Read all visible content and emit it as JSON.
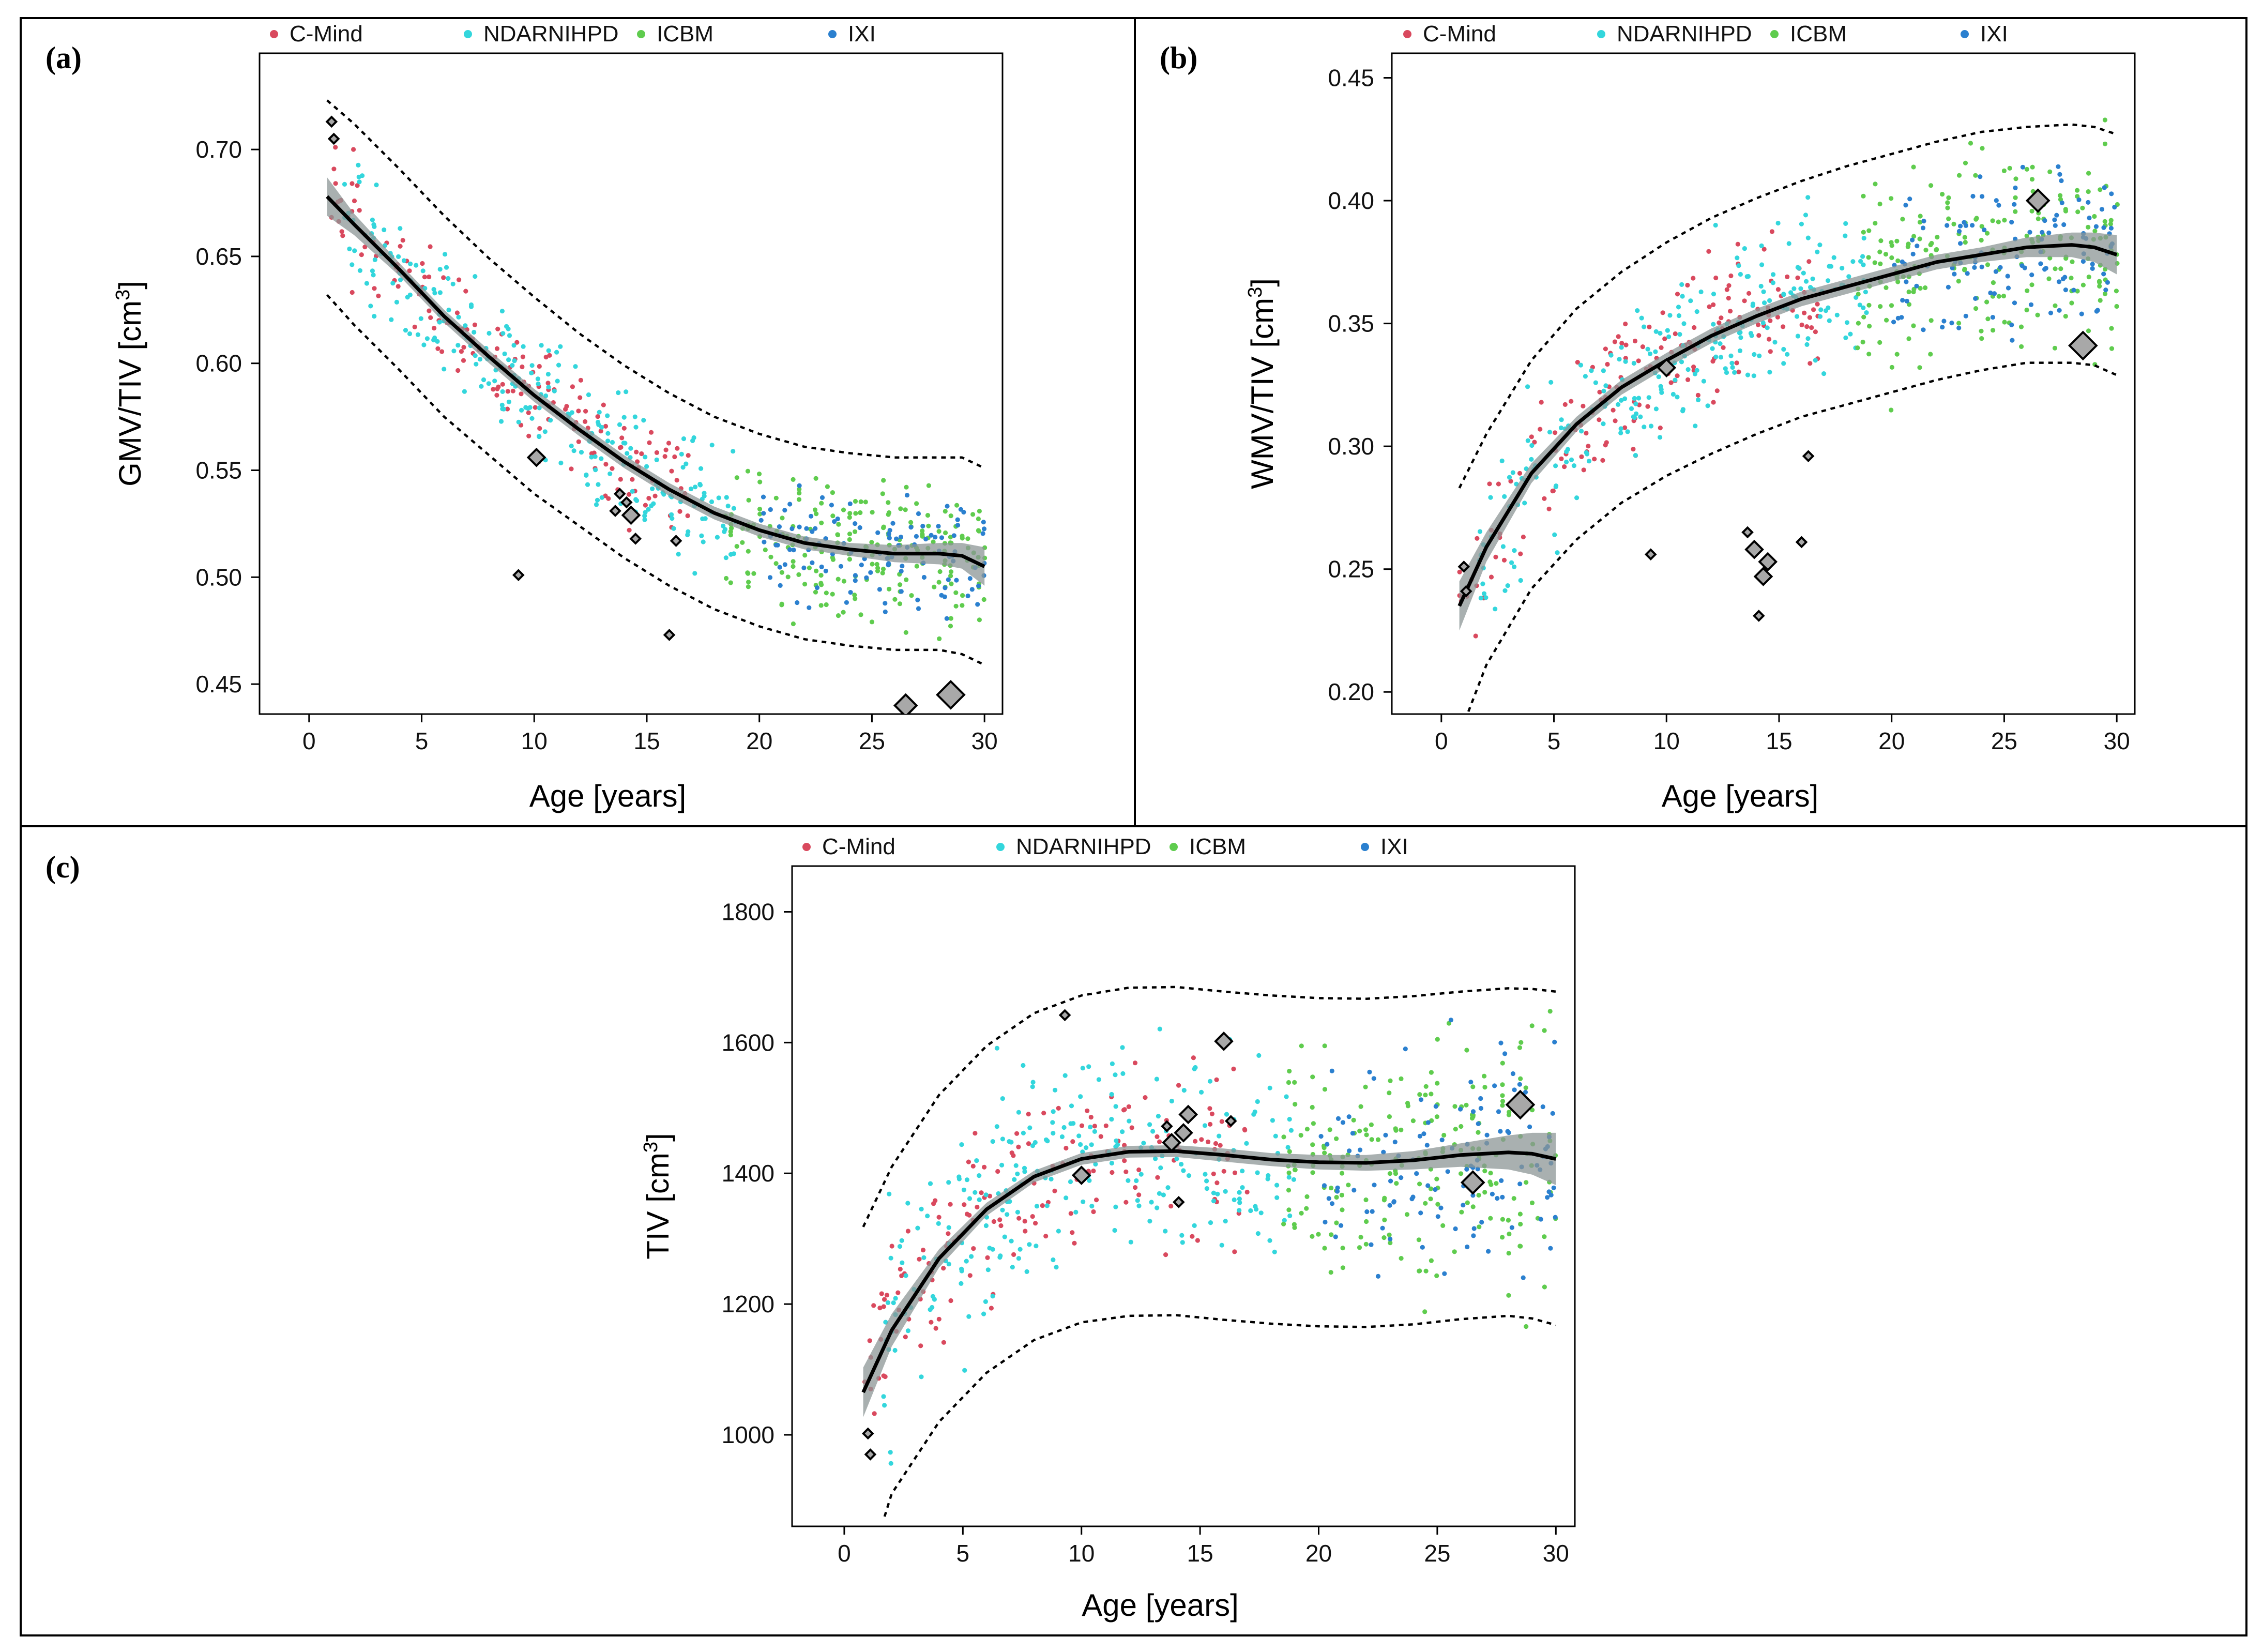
{
  "colors": {
    "C-Mind": "#d9495e",
    "NDARNIHPD": "#33d6dc",
    "ICBM": "#5fcc4e",
    "IXI": "#2b80cf"
  },
  "chart_data": [
    {
      "panel": "(a)",
      "type": "scatter",
      "xlabel": "Age [years]",
      "ylabel_main": "GMV/TIV [cm",
      "ylabel_sup": "3",
      "ylabel_close": "]",
      "xlim": [
        -2.2,
        30.8
      ],
      "ylim": [
        0.436,
        0.745
      ],
      "xticks": [
        0,
        5,
        10,
        15,
        20,
        25,
        30
      ],
      "yticks": [
        0.45,
        0.5,
        0.55,
        0.6,
        0.65,
        0.7
      ],
      "ytick_labels": [
        "0.45",
        "0.50",
        "0.55",
        "0.60",
        "0.65",
        "0.70"
      ],
      "legend": [
        "C-Mind",
        "NDARNIHPD",
        "ICBM",
        "IXI"
      ],
      "fit": {
        "x": [
          0.8,
          2,
          4,
          6,
          8,
          10,
          12,
          14,
          16,
          18,
          20,
          22,
          24,
          26,
          28,
          29,
          30
        ],
        "y": [
          0.678,
          0.665,
          0.644,
          0.622,
          0.603,
          0.585,
          0.569,
          0.554,
          0.541,
          0.53,
          0.522,
          0.516,
          0.513,
          0.511,
          0.511,
          0.51,
          0.505
        ],
        "ci": [
          0.009,
          0.005,
          0.003,
          0.003,
          0.003,
          0.003,
          0.003,
          0.003,
          0.003,
          0.003,
          0.003,
          0.003,
          0.003,
          0.004,
          0.005,
          0.006,
          0.009
        ]
      },
      "pi_upper": {
        "x": [
          0.8,
          2,
          4,
          6,
          8,
          10,
          12,
          14,
          16,
          18,
          20,
          22,
          24,
          26,
          28,
          29,
          30
        ],
        "y": [
          0.723,
          0.712,
          0.691,
          0.669,
          0.649,
          0.631,
          0.614,
          0.599,
          0.586,
          0.575,
          0.567,
          0.561,
          0.558,
          0.556,
          0.556,
          0.556,
          0.551
        ]
      },
      "pi_lower": {
        "x": [
          0.8,
          2,
          4,
          6,
          8,
          10,
          12,
          14,
          16,
          18,
          20,
          22,
          24,
          26,
          28,
          29,
          30
        ],
        "y": [
          0.632,
          0.618,
          0.597,
          0.575,
          0.557,
          0.539,
          0.524,
          0.509,
          0.496,
          0.485,
          0.477,
          0.471,
          0.468,
          0.466,
          0.466,
          0.464,
          0.459
        ]
      },
      "cohorts": {
        "C-Mind": {
          "xmin": 0.8,
          "xmax": 17.0,
          "spread": 0.018,
          "n": 170,
          "seed": 11
        },
        "NDARNIHPD": {
          "xmin": 1.5,
          "xmax": 19.0,
          "spread": 0.022,
          "n": 260,
          "seed": 23
        },
        "ICBM": {
          "xmin": 18.5,
          "xmax": 30.0,
          "spread": 0.023,
          "n": 220,
          "seed": 37,
          "columns": true
        },
        "IXI": {
          "xmin": 20.0,
          "xmax": 30.0,
          "spread": 0.022,
          "n": 120,
          "seed": 53
        }
      },
      "outliers": [
        {
          "x": 1.0,
          "y": 0.713,
          "size": "s"
        },
        {
          "x": 1.1,
          "y": 0.705,
          "size": "s"
        },
        {
          "x": 9.3,
          "y": 0.501,
          "size": "s"
        },
        {
          "x": 10.1,
          "y": 0.556,
          "size": "m"
        },
        {
          "x": 13.6,
          "y": 0.531,
          "size": "s"
        },
        {
          "x": 13.8,
          "y": 0.539,
          "size": "s"
        },
        {
          "x": 14.1,
          "y": 0.535,
          "size": "s"
        },
        {
          "x": 14.3,
          "y": 0.529,
          "size": "m"
        },
        {
          "x": 14.5,
          "y": 0.518,
          "size": "s"
        },
        {
          "x": 16.0,
          "y": 0.473,
          "size": "s"
        },
        {
          "x": 16.3,
          "y": 0.517,
          "size": "s"
        },
        {
          "x": 26.5,
          "y": 0.44,
          "size": "l"
        },
        {
          "x": 28.5,
          "y": 0.445,
          "size": "xl"
        }
      ]
    },
    {
      "panel": "(b)",
      "type": "scatter",
      "xlabel": "Age [years]",
      "ylabel_main": "WMV/TIV [cm",
      "ylabel_sup": "3",
      "ylabel_close": "]",
      "xlim": [
        -2.2,
        30.8
      ],
      "ylim": [
        0.191,
        0.46
      ],
      "xticks": [
        0,
        5,
        10,
        15,
        20,
        25,
        30
      ],
      "yticks": [
        0.2,
        0.25,
        0.3,
        0.35,
        0.4,
        0.45
      ],
      "ytick_labels": [
        "0.20",
        "0.25",
        "0.30",
        "0.35",
        "0.40",
        "0.45"
      ],
      "legend": [
        "C-Mind",
        "NDARNIHPD",
        "ICBM",
        "IXI"
      ],
      "fit": {
        "x": [
          0.8,
          2,
          4,
          6,
          8,
          10,
          12,
          14,
          16,
          18,
          20,
          22,
          24,
          26,
          28,
          29,
          30
        ],
        "y": [
          0.235,
          0.259,
          0.289,
          0.309,
          0.324,
          0.335,
          0.345,
          0.353,
          0.36,
          0.365,
          0.37,
          0.375,
          0.378,
          0.381,
          0.382,
          0.381,
          0.378
        ],
        "ci": [
          0.01,
          0.006,
          0.004,
          0.003,
          0.003,
          0.003,
          0.003,
          0.003,
          0.003,
          0.003,
          0.003,
          0.003,
          0.003,
          0.004,
          0.005,
          0.006,
          0.008
        ]
      },
      "pi_upper": {
        "x": [
          0.8,
          2,
          4,
          6,
          8,
          10,
          12,
          14,
          16,
          18,
          20,
          22,
          24,
          26,
          28,
          29,
          30
        ],
        "y": [
          0.283,
          0.305,
          0.335,
          0.356,
          0.371,
          0.383,
          0.393,
          0.401,
          0.408,
          0.414,
          0.419,
          0.424,
          0.428,
          0.43,
          0.431,
          0.43,
          0.427
        ]
      },
      "pi_lower": {
        "x": [
          1.2,
          2,
          4,
          6,
          8,
          10,
          12,
          14,
          16,
          18,
          20,
          22,
          24,
          26,
          28,
          29,
          30
        ],
        "y": [
          0.192,
          0.211,
          0.242,
          0.262,
          0.277,
          0.288,
          0.297,
          0.305,
          0.312,
          0.317,
          0.322,
          0.327,
          0.331,
          0.334,
          0.334,
          0.333,
          0.329
        ]
      },
      "cohorts": {
        "C-Mind": {
          "xmin": 0.8,
          "xmax": 17.0,
          "spread": 0.02,
          "n": 170,
          "seed": 71
        },
        "NDARNIHPD": {
          "xmin": 1.5,
          "xmax": 19.0,
          "spread": 0.024,
          "n": 260,
          "seed": 83
        },
        "ICBM": {
          "xmin": 18.5,
          "xmax": 30.0,
          "spread": 0.028,
          "n": 220,
          "seed": 97,
          "columns": true
        },
        "IXI": {
          "xmin": 20.0,
          "xmax": 30.0,
          "spread": 0.025,
          "n": 120,
          "seed": 109
        }
      },
      "outliers": [
        {
          "x": 1.0,
          "y": 0.251,
          "size": "s"
        },
        {
          "x": 1.1,
          "y": 0.241,
          "size": "s"
        },
        {
          "x": 9.3,
          "y": 0.256,
          "size": "s"
        },
        {
          "x": 10.0,
          "y": 0.332,
          "size": "m"
        },
        {
          "x": 13.6,
          "y": 0.265,
          "size": "s"
        },
        {
          "x": 13.9,
          "y": 0.258,
          "size": "m"
        },
        {
          "x": 14.1,
          "y": 0.231,
          "size": "s"
        },
        {
          "x": 14.3,
          "y": 0.247,
          "size": "m"
        },
        {
          "x": 14.5,
          "y": 0.253,
          "size": "m"
        },
        {
          "x": 16.0,
          "y": 0.261,
          "size": "s"
        },
        {
          "x": 16.3,
          "y": 0.296,
          "size": "s"
        },
        {
          "x": 26.5,
          "y": 0.4,
          "size": "l"
        },
        {
          "x": 28.5,
          "y": 0.341,
          "size": "xl"
        }
      ]
    },
    {
      "panel": "(c)",
      "type": "scatter",
      "xlabel": "Age [years]",
      "ylabel_main": "TIV [cm",
      "ylabel_sup": "3",
      "ylabel_close": "]",
      "xlim": [
        -2.2,
        30.8
      ],
      "ylim": [
        860,
        1870
      ],
      "xticks": [
        0,
        5,
        10,
        15,
        20,
        25,
        30
      ],
      "yticks": [
        1000,
        1200,
        1400,
        1600,
        1800
      ],
      "ytick_labels": [
        "1000",
        "1200",
        "1400",
        "1600",
        "1800"
      ],
      "legend": [
        "C-Mind",
        "NDARNIHPD",
        "ICBM",
        "IXI"
      ],
      "fit": {
        "x": [
          0.8,
          2,
          4,
          6,
          8,
          10,
          12,
          14,
          16,
          18,
          20,
          22,
          24,
          26,
          28,
          29,
          30
        ],
        "y": [
          1065,
          1160,
          1270,
          1345,
          1395,
          1422,
          1433,
          1434,
          1428,
          1421,
          1417,
          1416,
          1420,
          1428,
          1432,
          1430,
          1422
        ],
        "ci": [
          38,
          25,
          14,
          10,
          9,
          9,
          9,
          9,
          10,
          10,
          11,
          12,
          14,
          18,
          26,
          32,
          40
        ]
      },
      "pi_upper": {
        "x": [
          0.8,
          2,
          4,
          6,
          8,
          10,
          12,
          14,
          16,
          18,
          20,
          22,
          24,
          26,
          28,
          29,
          30
        ],
        "y": [
          1318,
          1410,
          1520,
          1595,
          1645,
          1672,
          1684,
          1685,
          1678,
          1672,
          1668,
          1667,
          1671,
          1678,
          1683,
          1682,
          1678
        ]
      },
      "pi_lower": {
        "x": [
          1.7,
          2,
          4,
          6,
          8,
          10,
          12,
          14,
          16,
          18,
          20,
          22,
          24,
          26,
          28,
          29,
          30
        ],
        "y": [
          875,
          910,
          1020,
          1095,
          1145,
          1172,
          1182,
          1183,
          1176,
          1170,
          1166,
          1165,
          1169,
          1177,
          1182,
          1178,
          1168
        ]
      },
      "cohorts": {
        "C-Mind": {
          "xmin": 0.8,
          "xmax": 17.0,
          "spread": 95,
          "n": 170,
          "seed": 131
        },
        "NDARNIHPD": {
          "xmin": 1.5,
          "xmax": 19.0,
          "spread": 120,
          "n": 260,
          "seed": 149
        },
        "ICBM": {
          "xmin": 18.5,
          "xmax": 30.0,
          "spread": 135,
          "n": 220,
          "seed": 157,
          "columns": true
        },
        "IXI": {
          "xmin": 20.0,
          "xmax": 30.0,
          "spread": 120,
          "n": 120,
          "seed": 173
        }
      },
      "outliers": [
        {
          "x": 1.0,
          "y": 1002,
          "size": "s"
        },
        {
          "x": 1.1,
          "y": 970,
          "size": "s"
        },
        {
          "x": 9.3,
          "y": 1642,
          "size": "s"
        },
        {
          "x": 10.0,
          "y": 1397,
          "size": "m"
        },
        {
          "x": 13.6,
          "y": 1472,
          "size": "s"
        },
        {
          "x": 13.8,
          "y": 1447,
          "size": "m"
        },
        {
          "x": 14.1,
          "y": 1356,
          "size": "s"
        },
        {
          "x": 14.3,
          "y": 1462,
          "size": "m"
        },
        {
          "x": 14.5,
          "y": 1490,
          "size": "m"
        },
        {
          "x": 16.0,
          "y": 1602,
          "size": "m"
        },
        {
          "x": 16.3,
          "y": 1480,
          "size": "s"
        },
        {
          "x": 26.5,
          "y": 1386,
          "size": "l"
        },
        {
          "x": 28.5,
          "y": 1505,
          "size": "xl"
        }
      ]
    }
  ]
}
